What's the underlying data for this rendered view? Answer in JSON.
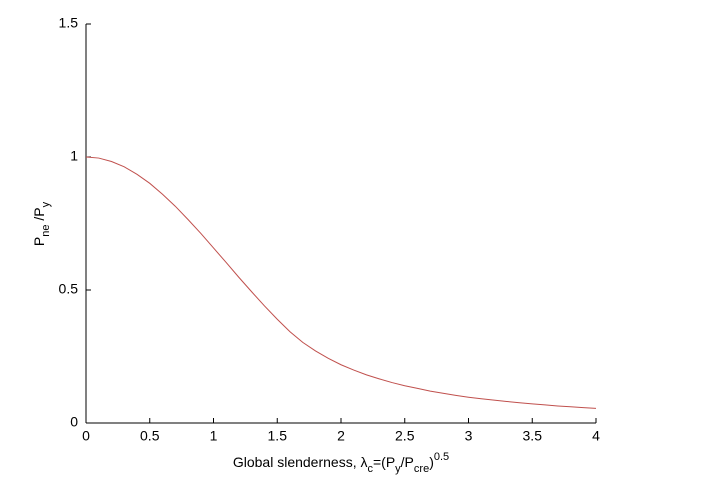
{
  "chart_data": {
    "type": "line",
    "xlabel": [
      {
        "text": "Global slenderness, λ"
      },
      {
        "text": "c",
        "shift": "sub"
      },
      {
        "text": "=(P"
      },
      {
        "text": "y",
        "shift": "sub"
      },
      {
        "text": "/P"
      },
      {
        "text": "cre",
        "shift": "sub"
      },
      {
        "text": ")"
      },
      {
        "text": "0.5",
        "shift": "super"
      }
    ],
    "ylabel": [
      {
        "text": "P"
      },
      {
        "text": "ne",
        "shift": "sub"
      },
      {
        "text": " /P"
      },
      {
        "text": "y",
        "shift": "sub"
      }
    ],
    "x": [
      0,
      0.1,
      0.2,
      0.3,
      0.4,
      0.5,
      0.6,
      0.7,
      0.8,
      0.9,
      1.0,
      1.1,
      1.2,
      1.3,
      1.4,
      1.5,
      1.6,
      1.7,
      1.8,
      1.9,
      2.0,
      2.1,
      2.2,
      2.3,
      2.4,
      2.5,
      2.6,
      2.7,
      2.8,
      2.9,
      3.0,
      3.1,
      3.2,
      3.3,
      3.4,
      3.5,
      3.6,
      3.7,
      3.8,
      3.9,
      4.0
    ],
    "values": [
      1,
      0.996,
      0.983,
      0.963,
      0.935,
      0.901,
      0.86,
      0.815,
      0.765,
      0.713,
      0.658,
      0.603,
      0.547,
      0.493,
      0.44,
      0.39,
      0.343,
      0.303,
      0.271,
      0.243,
      0.219,
      0.199,
      0.181,
      0.166,
      0.152,
      0.14,
      0.13,
      0.12,
      0.112,
      0.104,
      0.097,
      0.091,
      0.086,
      0.081,
      0.076,
      0.072,
      0.068,
      0.064,
      0.061,
      0.058,
      0.055
    ],
    "color": "#c0504d",
    "xlim": [
      0,
      4
    ],
    "ylim": [
      0,
      1.5
    ],
    "xticks": [
      0,
      0.5,
      1,
      1.5,
      2,
      2.5,
      3,
      3.5,
      4
    ],
    "yticks": [
      0,
      0.5,
      1,
      1.5
    ]
  }
}
